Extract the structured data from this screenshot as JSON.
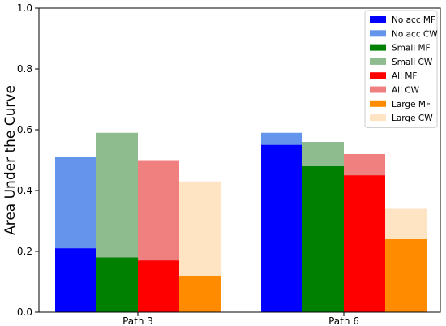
{
  "chart_data": {
    "type": "bar",
    "title": "",
    "xlabel": "",
    "ylabel": "Area Under the Curve",
    "ylim": [
      0,
      1.0
    ],
    "yticks": [
      0.0,
      0.2,
      0.4,
      0.6,
      0.8,
      1.0
    ],
    "ytick_labels": [
      "0.0",
      "0.2",
      "0.4",
      "0.6",
      "0.8",
      "1.0"
    ],
    "categories": [
      "Path 3",
      "Path 6"
    ],
    "legend_position": "top-right",
    "grid": false,
    "groups": [
      {
        "name": "No acc",
        "mf_label": "No acc MF",
        "cw_label": "No acc CW",
        "mf_color": "#0000ff",
        "cw_color": "#6495ed",
        "mf": [
          0.21,
          0.55
        ],
        "cw": [
          0.51,
          0.59
        ]
      },
      {
        "name": "Small",
        "mf_label": "Small MF",
        "cw_label": "Small CW",
        "mf_color": "#008000",
        "cw_color": "#8fbc8f",
        "mf": [
          0.18,
          0.48
        ],
        "cw": [
          0.59,
          0.56
        ]
      },
      {
        "name": "All",
        "mf_label": "All MF",
        "cw_label": "All CW",
        "mf_color": "#ff0000",
        "cw_color": "#f08080",
        "mf": [
          0.17,
          0.45
        ],
        "cw": [
          0.5,
          0.52
        ]
      },
      {
        "name": "Large",
        "mf_label": "Large MF",
        "cw_label": "Large CW",
        "mf_color": "#ff8c00",
        "cw_color": "#ffe4c4",
        "mf": [
          0.12,
          0.24
        ],
        "cw": [
          0.43,
          0.34
        ]
      }
    ]
  }
}
